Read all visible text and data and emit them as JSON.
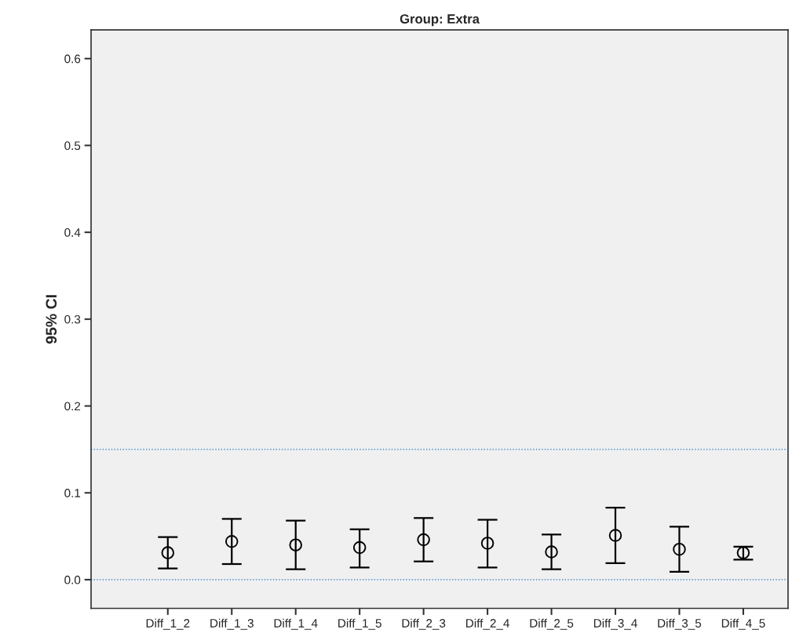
{
  "chart_data": {
    "type": "scatter",
    "title": "Group: Extra",
    "ylabel": "95% CI",
    "categories": [
      "Diff_1_2",
      "Diff_1_3",
      "Diff_1_4",
      "Diff_1_5",
      "Diff_2_3",
      "Diff_2_4",
      "Diff_2_5",
      "Diff_3_4",
      "Diff_3_5",
      "Diff_4_5"
    ],
    "values": [
      0.031,
      0.044,
      0.04,
      0.037,
      0.046,
      0.042,
      0.032,
      0.051,
      0.035,
      0.031
    ],
    "errors": [
      [
        0.013,
        0.049
      ],
      [
        0.018,
        0.07
      ],
      [
        0.012,
        0.068
      ],
      [
        0.014,
        0.058
      ],
      [
        0.021,
        0.071
      ],
      [
        0.014,
        0.069
      ],
      [
        0.012,
        0.052
      ],
      [
        0.019,
        0.083
      ],
      [
        0.009,
        0.061
      ],
      [
        0.023,
        0.038
      ]
    ],
    "color": "#000000",
    "marker": "circle",
    "ylim": [
      -0.033,
      0.633
    ],
    "yticks": [
      {
        "value": 0.0,
        "label": "0.0"
      },
      0.1,
      0.2,
      0.3,
      0.4,
      0.5,
      0.6
    ],
    "ref_lines": [
      {
        "axis": "y",
        "value": 0.15,
        "color": "#1f77c4",
        "line_style": "dotted"
      },
      {
        "axis": "y",
        "value": 0.0,
        "color": "#1f77c4",
        "line_style": "dotted"
      }
    ],
    "grid": false,
    "legend": false
  }
}
